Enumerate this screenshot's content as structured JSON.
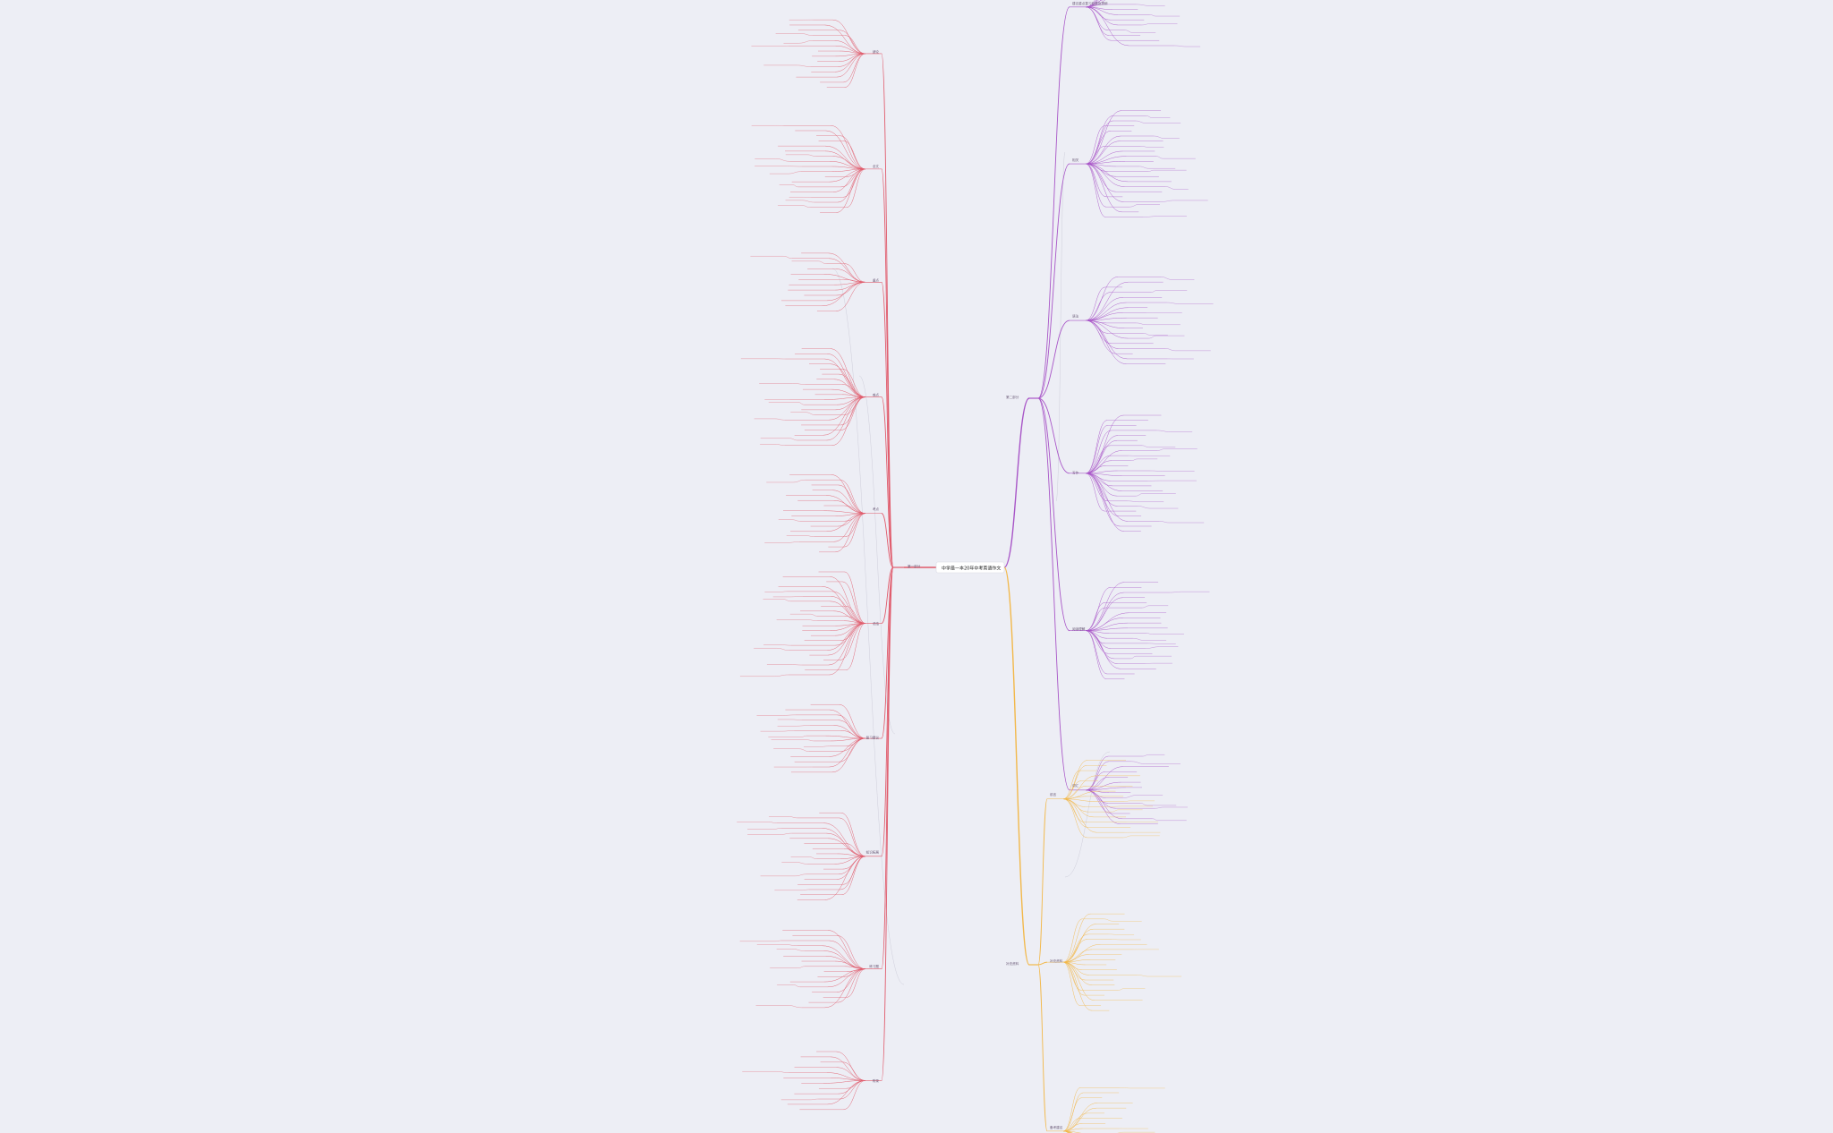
{
  "central": {
    "title": "中学最⼀本20年中考英语作文"
  },
  "colors": {
    "background": "#edeef5",
    "left_branch": "#e05a6b",
    "right_upper_branch": "#a855c7",
    "right_lower_branch": "#f2b84a",
    "cross_link": "#cfcfdb"
  },
  "branches": {
    "right_upper": {
      "label": "第二部分",
      "sub": [
        "建议重点复习目录及提纲",
        "相关",
        "语法",
        "写作",
        "阅读理解",
        "词汇"
      ]
    },
    "right_lower": {
      "label": "补充资料",
      "sub": [
        "前言",
        "补充资料",
        "备考建议"
      ]
    },
    "left": {
      "label": "第一部分",
      "sub": [
        "绪论",
        "全文",
        "重点",
        "难点",
        "考点",
        "总结",
        "复习建议",
        "知识拓展",
        "练习题",
        "附录"
      ]
    }
  }
}
